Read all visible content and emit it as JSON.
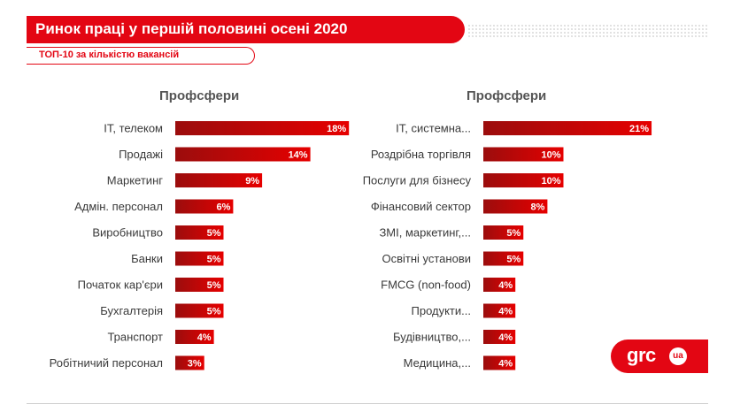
{
  "header": {
    "title": "Ринок праці у першій половині осені 2020",
    "subtitle": "ТОП-10 за кількістю вакансій"
  },
  "logo": {
    "text": "grc",
    "badge": "ua"
  },
  "colors": {
    "accent": "#e30613",
    "bar_dark": "#9b0d0d",
    "bar_light": "#e60000"
  },
  "chart_data": [
    {
      "type": "bar",
      "orientation": "horizontal",
      "title": "Профсфери",
      "categories": [
        "IT, телеком",
        "Продажі",
        "Маркетинг",
        "Адмін. персонал",
        "Виробництво",
        "Банки",
        "Початок кар'єри",
        "Бухгалтерія",
        "Транспорт",
        "Робітничий персонал"
      ],
      "values": [
        18,
        14,
        9,
        6,
        5,
        5,
        5,
        5,
        4,
        3
      ],
      "value_labels": [
        "18%",
        "14%",
        "9%",
        "6%",
        "5%",
        "5%",
        "5%",
        "5%",
        "4%",
        "3%"
      ],
      "unit": "%"
    },
    {
      "type": "bar",
      "orientation": "horizontal",
      "title": "Профсфери",
      "categories": [
        "IT, системна...",
        "Роздрібна торгівля",
        "Послуги для бізнесу",
        "Фінансовий сектор",
        "ЗМІ, маркетинг,...",
        "Освітні установи",
        "FMCG (non-food)",
        "Продукти...",
        "Будівництво,...",
        "Медицина,..."
      ],
      "values": [
        21,
        10,
        10,
        8,
        5,
        5,
        4,
        4,
        4,
        4
      ],
      "value_labels": [
        "21%",
        "10%",
        "10%",
        "8%",
        "5%",
        "5%",
        "4%",
        "4%",
        "4%",
        "4%"
      ],
      "unit": "%"
    }
  ]
}
